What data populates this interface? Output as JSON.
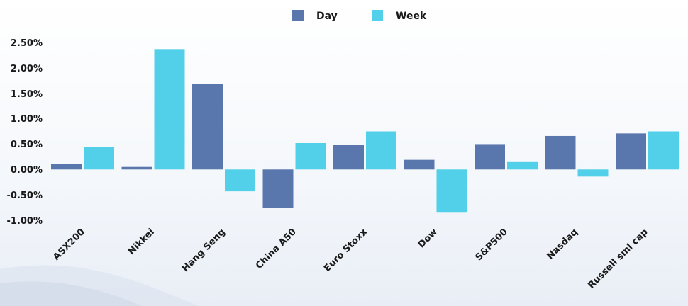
{
  "chart_data": {
    "type": "bar",
    "categories": [
      "ASX200",
      "Nikkei",
      "Hang Seng",
      "China A50",
      "Euro Stoxx",
      "Dow",
      "S&P500",
      "Nasdaq",
      "Russell sml cap"
    ],
    "series": [
      {
        "name": "Day",
        "color": "#5a77ad",
        "values": [
          0.11,
          0.05,
          1.69,
          -0.75,
          0.49,
          0.19,
          0.5,
          0.66,
          0.71
        ]
      },
      {
        "name": "Week",
        "color": "#52d0ea",
        "values": [
          0.44,
          2.37,
          -0.43,
          0.52,
          0.75,
          -0.85,
          0.16,
          -0.14,
          0.75
        ]
      }
    ],
    "y_ticks": [
      "2.50%",
      "2.00%",
      "1.50%",
      "1.00%",
      "0.50%",
      "0.00%",
      "-0.50%",
      "-1.00%"
    ],
    "ylim": [
      -1.0,
      2.5
    ],
    "legend_position": "top-center",
    "grid": false
  }
}
